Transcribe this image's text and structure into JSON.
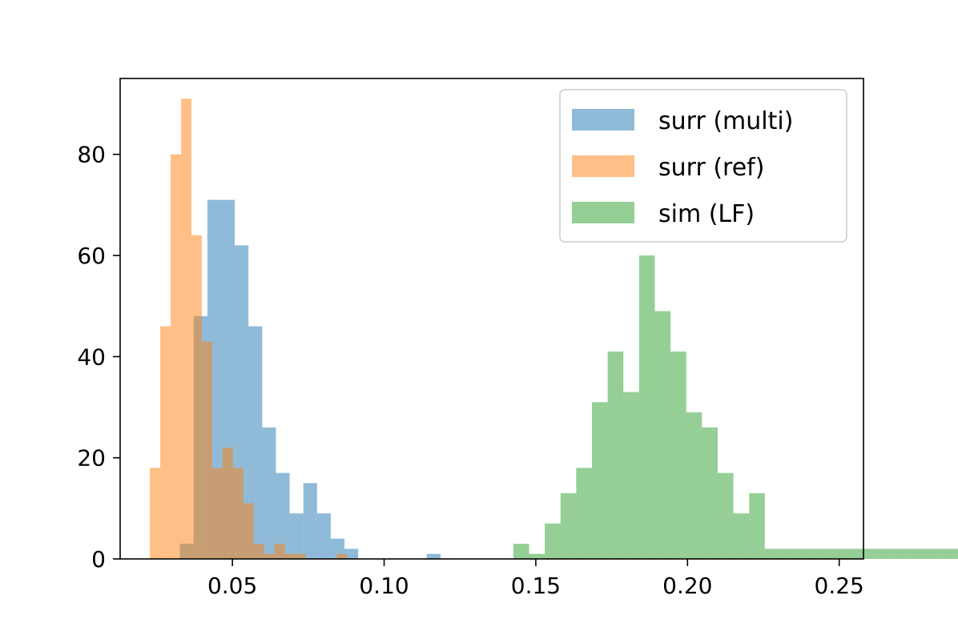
{
  "chart_data": {
    "type": "histogram",
    "title": "",
    "xlabel": "",
    "ylabel": "",
    "xlim": [
      0.013,
      0.258
    ],
    "ylim": [
      0,
      95
    ],
    "xticks": [
      0.05,
      0.1,
      0.15,
      0.2,
      0.25
    ],
    "xtick_labels": [
      "0.05",
      "0.10",
      "0.15",
      "0.20",
      "0.25"
    ],
    "yticks": [
      0,
      20,
      40,
      60,
      80
    ],
    "ytick_labels": [
      "0",
      "20",
      "40",
      "60",
      "80"
    ],
    "legend_position": "top-right",
    "series": [
      {
        "name": "surr (multi)",
        "color": "#1f77b4",
        "alpha": 0.5,
        "bin_start": 0.0327,
        "bin_width": 0.00452,
        "counts": [
          3,
          48,
          71,
          71,
          62,
          46,
          26,
          17,
          9,
          15,
          9,
          4,
          2,
          0,
          0,
          0,
          0,
          0,
          1
        ]
      },
      {
        "name": "surr (ref)",
        "color": "#ff7f0e",
        "alpha": 0.5,
        "bin_start": 0.0228,
        "bin_width": 0.00342,
        "counts": [
          18,
          46,
          80,
          91,
          64,
          43,
          18,
          22,
          18,
          11,
          3,
          1,
          3,
          1,
          1,
          0,
          0,
          0,
          1
        ]
      },
      {
        "name": "sim (LF)",
        "color": "#2ca02c",
        "alpha": 0.5,
        "bin_start": 0.1426,
        "bin_width": 0.00518,
        "counts": [
          3,
          1,
          7,
          13,
          18,
          31,
          41,
          33,
          60,
          49,
          41,
          29,
          26,
          17,
          9,
          13,
          2,
          2,
          2,
          2,
          2,
          2,
          2,
          2,
          2,
          2,
          2,
          2,
          2,
          2,
          2,
          2,
          2,
          2,
          2,
          2,
          2,
          2,
          2,
          2,
          2,
          2,
          2,
          2,
          2,
          2,
          2,
          2,
          2,
          2,
          2,
          2,
          2,
          2,
          2,
          2,
          2,
          2,
          2,
          2,
          2,
          2
        ]
      }
    ]
  }
}
